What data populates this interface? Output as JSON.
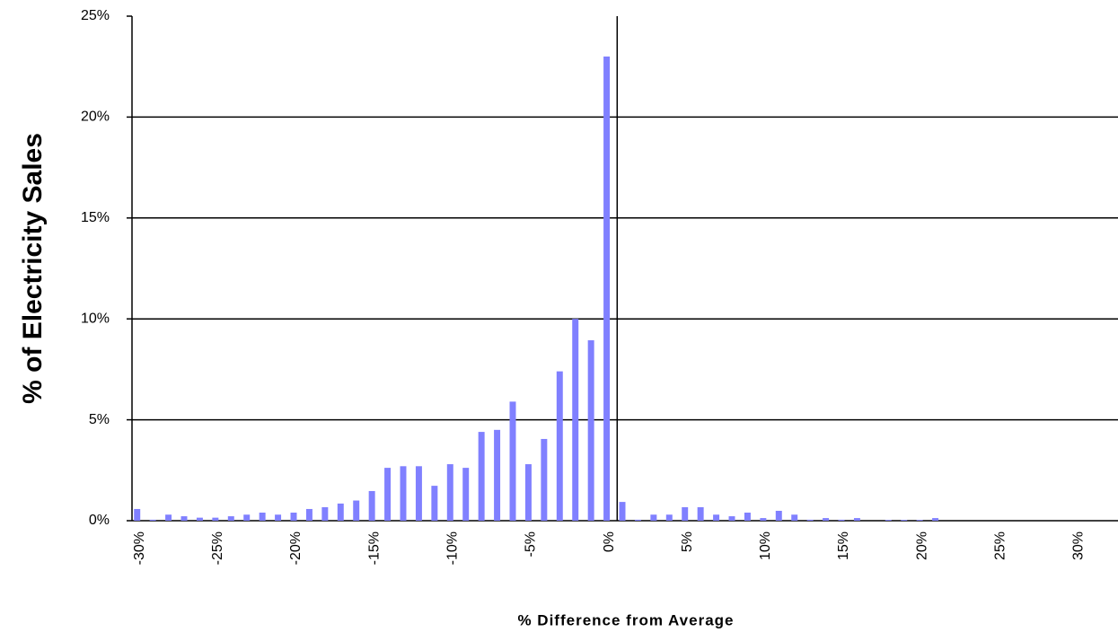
{
  "chart_data": {
    "type": "bar",
    "y_label": "% of Electricity Sales",
    "x_label": "% Difference from Average",
    "categories": [
      "-30%",
      null,
      null,
      null,
      null,
      "-25%",
      null,
      null,
      null,
      null,
      "-20%",
      null,
      null,
      null,
      null,
      "-15%",
      null,
      null,
      null,
      null,
      "-10%",
      null,
      null,
      null,
      null,
      "-5%",
      null,
      null,
      null,
      null,
      "0%",
      null,
      null,
      null,
      null,
      "5%",
      null,
      null,
      null,
      null,
      "10%",
      null,
      null,
      null,
      null,
      "15%",
      null,
      null,
      null,
      null,
      "20%",
      null,
      null,
      null,
      null,
      "25%",
      null,
      null,
      null,
      null,
      "30%",
      null,
      null
    ],
    "values": [
      0.58,
      0.05,
      0.3,
      0.22,
      0.15,
      0.15,
      0.22,
      0.3,
      0.4,
      0.3,
      0.4,
      0.58,
      0.67,
      0.85,
      1.0,
      1.47,
      2.62,
      2.7,
      2.7,
      1.73,
      2.8,
      2.62,
      4.4,
      4.5,
      5.9,
      2.8,
      4.05,
      7.4,
      10.0,
      8.94,
      23.0,
      0.93,
      0.05,
      0.3,
      0.3,
      0.67,
      0.67,
      0.3,
      0.22,
      0.4,
      0.13,
      0.49,
      0.3,
      0.05,
      0.13,
      0.05,
      0.13,
      0,
      0.04,
      0.04,
      0.04,
      0.13,
      0,
      0,
      0,
      0,
      0,
      0,
      0,
      0,
      0,
      0,
      0
    ],
    "color": "#8080ff",
    "ylim": [
      0,
      25
    ],
    "yticks": [
      {
        "value": 0,
        "label": "0%"
      },
      {
        "value": 5,
        "label": "5%"
      },
      {
        "value": 10,
        "label": "10%"
      },
      {
        "value": 15,
        "label": "15%"
      },
      {
        "value": 20,
        "label": "20%"
      },
      {
        "value": 25,
        "label": "25%"
      }
    ],
    "grid": true
  }
}
